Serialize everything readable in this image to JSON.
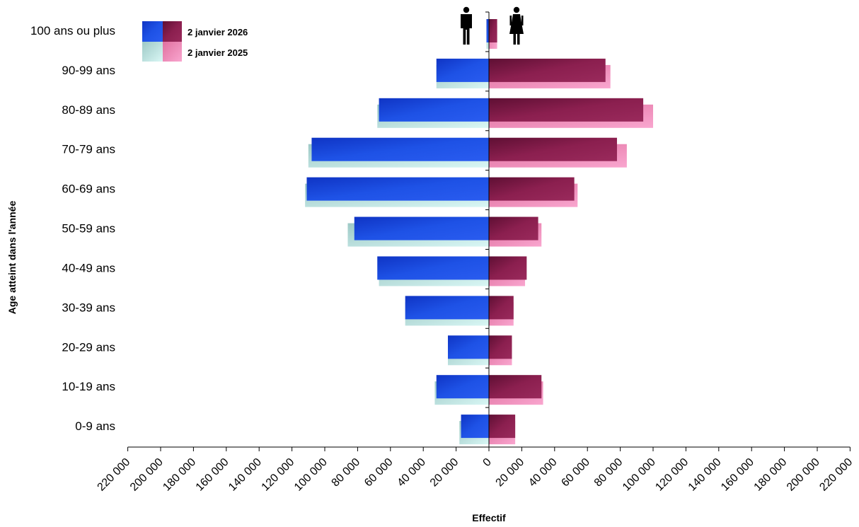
{
  "chart_data": {
    "type": "bar",
    "orientation": "horizontal-pyramid",
    "categories": [
      "100 ans ou plus",
      "90-99 ans",
      "80-89 ans",
      "70-79 ans",
      "60-69 ans",
      "50-59 ans",
      "40-49 ans",
      "30-39 ans",
      "20-29 ans",
      "10-19 ans",
      "0-9 ans"
    ],
    "series": [
      {
        "name": "2 janvier 2026",
        "side": "left",
        "group": "hommes",
        "color": "#1e4fe0",
        "values": [
          1500,
          32000,
          67000,
          108000,
          111000,
          82000,
          68000,
          51000,
          25000,
          32000,
          17000
        ]
      },
      {
        "name": "2 janvier 2026",
        "side": "right",
        "group": "femmes",
        "color": "#8b1f4f",
        "values": [
          5000,
          71000,
          94000,
          78000,
          52000,
          30000,
          23000,
          15000,
          14000,
          32000,
          16000
        ]
      },
      {
        "name": "2 janvier 2025",
        "side": "left",
        "group": "hommes",
        "color": "#b8ece8",
        "values": [
          1500,
          32000,
          68000,
          110000,
          112000,
          86000,
          67000,
          51000,
          25000,
          33000,
          18000
        ]
      },
      {
        "name": "2 janvier 2025",
        "side": "right",
        "group": "femmes",
        "color": "#f07fb5",
        "values": [
          5000,
          74000,
          100000,
          84000,
          54000,
          32000,
          22000,
          15000,
          14000,
          33000,
          16000
        ]
      }
    ],
    "xticks_left": [
      "220 000",
      "200 000",
      "180 000",
      "160 000",
      "140 000",
      "120 000",
      "100 000",
      "80 000",
      "60 000",
      "40 000",
      "20 000"
    ],
    "xtick_zero": "0",
    "xticks_right": [
      "20 000",
      "40 000",
      "60 000",
      "80 000",
      "100 000",
      "120 000",
      "140 000",
      "160 000",
      "180 000",
      "200 000",
      "220 000"
    ],
    "xlim": [
      -220000,
      220000
    ],
    "xlabel": "Effectif",
    "ylabel": "Age atteint dans l'année",
    "legend": {
      "placement": "top-left",
      "entries": [
        "2 janvier 2026",
        "2 janvier 2025"
      ]
    },
    "icons": [
      "man-icon",
      "woman-icon"
    ],
    "grid": false
  }
}
